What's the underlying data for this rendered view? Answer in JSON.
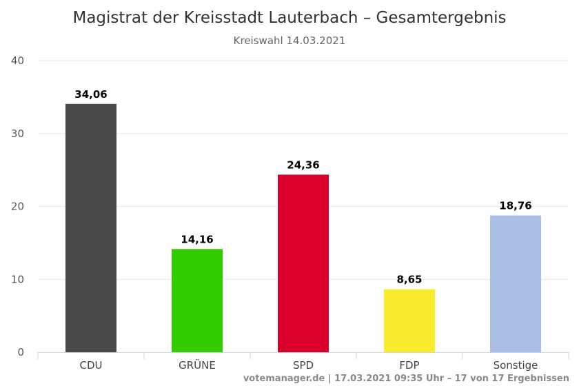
{
  "chart_data": {
    "type": "bar",
    "title": "Magistrat der Kreisstadt Lauterbach – Gesamtergebnis",
    "subtitle": "Kreiswahl 14.03.2021",
    "categories": [
      "CDU",
      "GRÜNE",
      "SPD",
      "FDP",
      "Sonstige"
    ],
    "values": [
      34.06,
      14.16,
      24.36,
      8.65,
      18.76
    ],
    "value_labels": [
      "34,06",
      "14,16",
      "24,36",
      "8,65",
      "18,76"
    ],
    "colors": [
      "#484848",
      "#33cc00",
      "#d9002b",
      "#f9ec2f",
      "#a8bee4"
    ],
    "ylim": [
      0,
      40
    ],
    "yticks": [
      "0",
      "10",
      "20",
      "30",
      "40"
    ],
    "xlabel": "",
    "ylabel": "",
    "grid": true,
    "legend": "none"
  },
  "credit": "votemanager.de | 17.03.2021 09:35 Uhr – 17 von 17 Ergebnissen"
}
